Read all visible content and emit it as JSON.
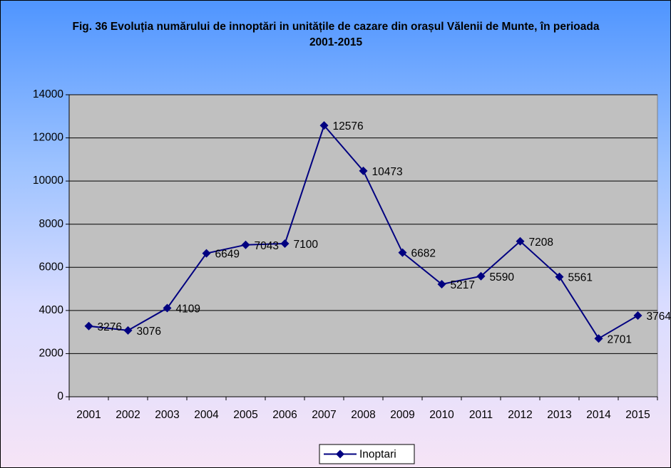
{
  "chart_data": {
    "type": "line",
    "title": "Fig. 36 Evoluția numărului de innoptări in unitățile de cazare din orașul Vălenii de Munte, în perioada 2001-2015",
    "categories": [
      "2001",
      "2002",
      "2003",
      "2004",
      "2005",
      "2006",
      "2007",
      "2008",
      "2009",
      "2010",
      "2011",
      "2012",
      "2013",
      "2014",
      "2015"
    ],
    "series": [
      {
        "name": "Inoptari",
        "color": "#000080",
        "values": [
          3276,
          3076,
          4109,
          6649,
          7043,
          7100,
          12576,
          10473,
          6682,
          5217,
          5590,
          7208,
          5561,
          2701,
          3764
        ]
      }
    ],
    "ylim": [
      0,
      14000
    ],
    "yticks": [
      0,
      2000,
      4000,
      6000,
      8000,
      10000,
      12000,
      14000
    ],
    "grid": true,
    "legend": "bottom",
    "plot_background": "#c0c0c0"
  }
}
